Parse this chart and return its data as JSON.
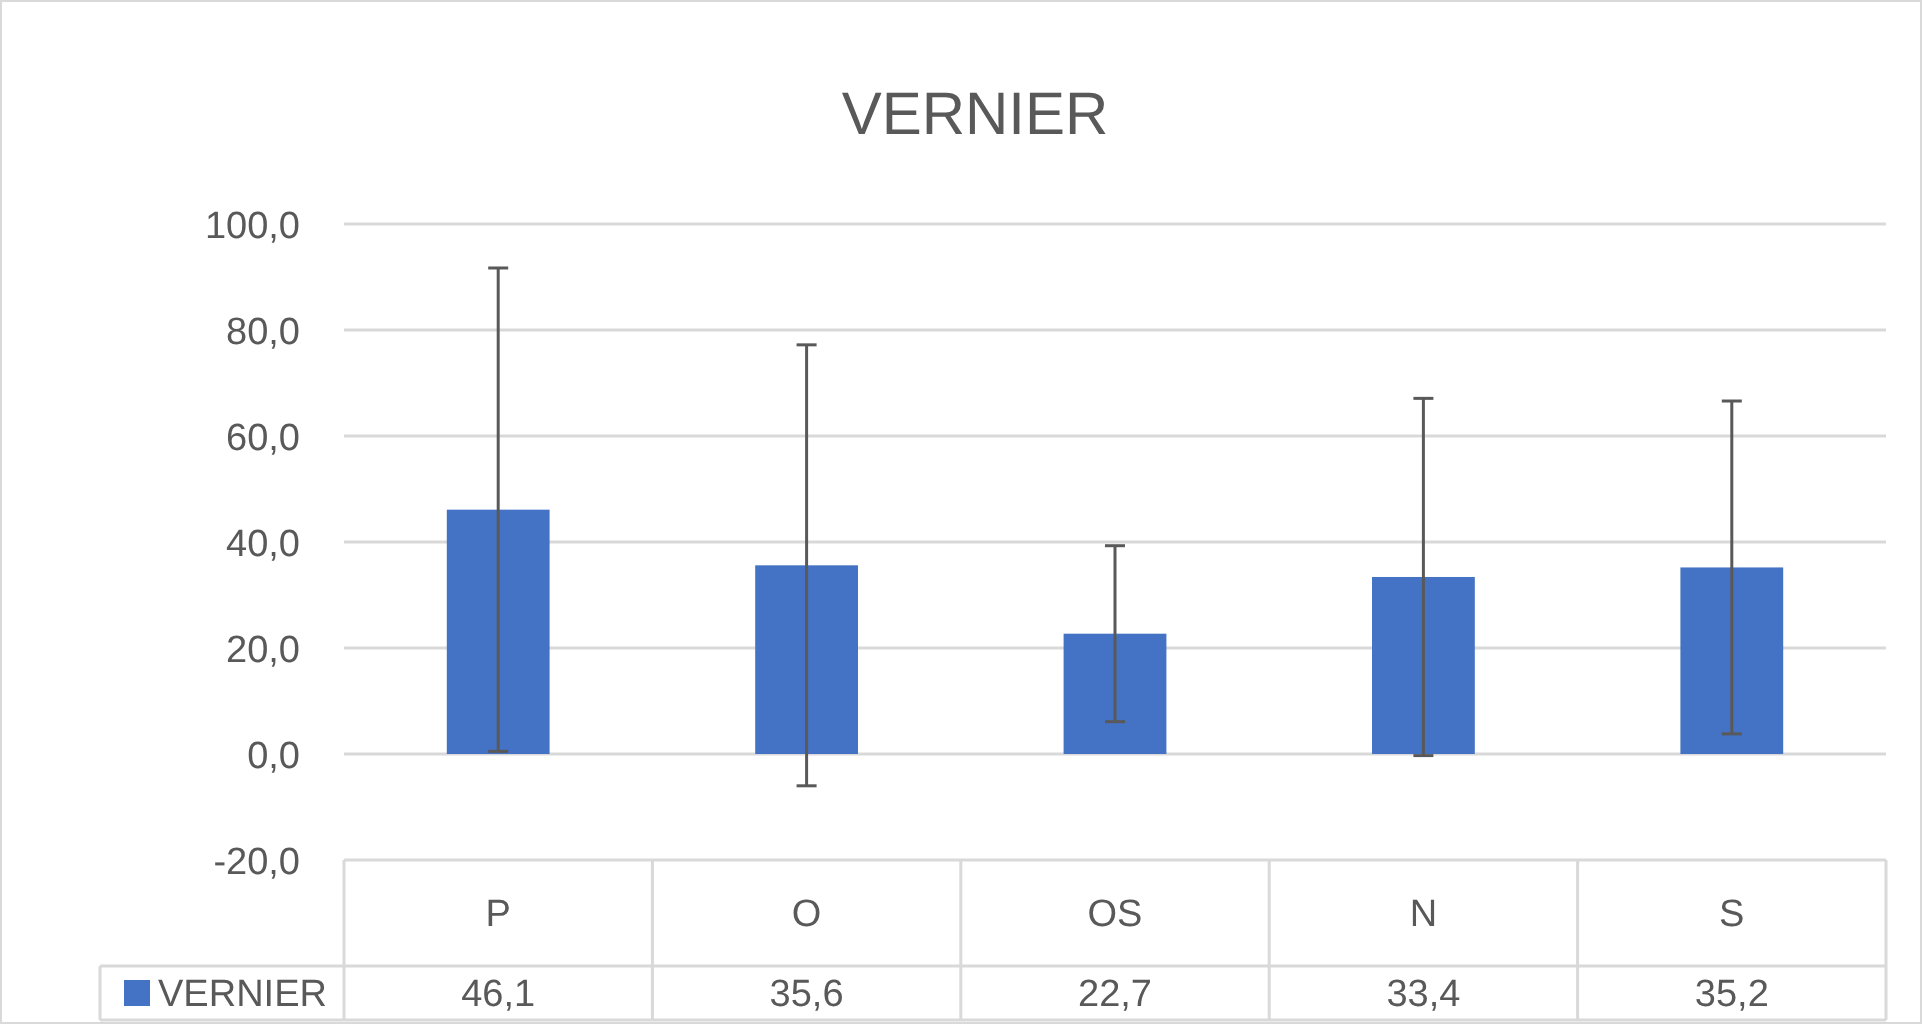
{
  "chart_data": {
    "type": "bar",
    "title": "VERNIER",
    "categories": [
      "P",
      "O",
      "OS",
      "N",
      "S"
    ],
    "series": [
      {
        "name": "VERNIER",
        "color": "#4472c4",
        "values": [
          46.1,
          35.6,
          22.7,
          33.4,
          35.2
        ],
        "errors": [
          45.6,
          41.6,
          16.6,
          33.7,
          31.4
        ],
        "value_labels": [
          "46,1",
          "35,6",
          "22,7",
          "33,4",
          "35,2"
        ]
      }
    ],
    "ylim": [
      -20,
      100
    ],
    "yticks": [
      {
        "value": -20,
        "label": "-20,0"
      },
      {
        "value": 0,
        "label": "0,0"
      },
      {
        "value": 20,
        "label": "20,0"
      },
      {
        "value": 40,
        "label": "40,0"
      },
      {
        "value": 60,
        "label": "60,0"
      },
      {
        "value": 80,
        "label": "80,0"
      },
      {
        "value": 100,
        "label": "100,0"
      }
    ],
    "grid": "y",
    "legend": "bottom"
  }
}
